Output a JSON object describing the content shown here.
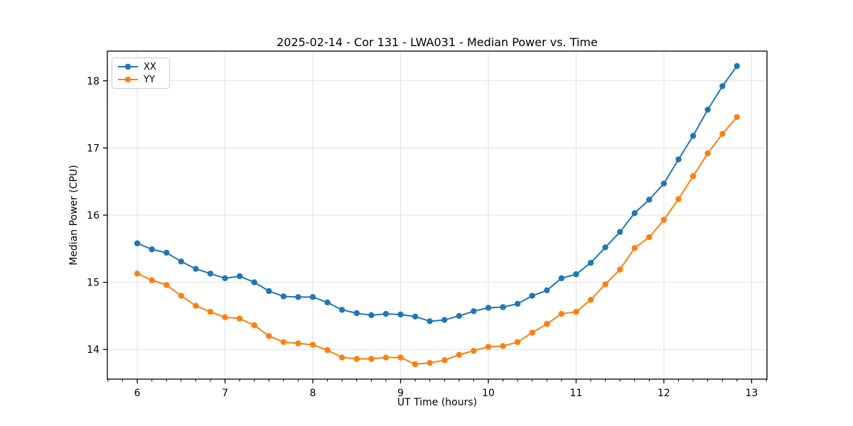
{
  "figure": {
    "title": "2025-02-14 - Cor 131 - LWA031 - Median Power vs. Time",
    "xlabel": "UT Time (hours)",
    "ylabel": "Median Power (CPU)"
  },
  "legend": {
    "entries": [
      {
        "label": "XX",
        "color": "#1f77b4"
      },
      {
        "label": "YY",
        "color": "#ff7f0e"
      }
    ]
  },
  "colors": {
    "background": "#ffffff",
    "grid": "#e0e0e0",
    "spine": "#000000",
    "text": "#000000",
    "series_blue": "#1f77b4",
    "series_orange": "#ff7f0e"
  },
  "chart_data": {
    "type": "line",
    "title": "2025-02-14 - Cor 131 - LWA031 - Median Power vs. Time",
    "xlabel": "UT Time (hours)",
    "ylabel": "Median Power (CPU)",
    "xlim": [
      5.659,
      13.175
    ],
    "ylim": [
      13.558,
      18.442
    ],
    "xticks": [
      6,
      7,
      8,
      9,
      10,
      11,
      12,
      13
    ],
    "yticks": [
      14,
      15,
      16,
      17,
      18
    ],
    "x_minor_step": 0.1666667,
    "grid": true,
    "legend_position": "upper left",
    "marker": "o",
    "x": [
      6.0,
      6.167,
      6.333,
      6.5,
      6.667,
      6.833,
      7.0,
      7.167,
      7.333,
      7.5,
      7.667,
      7.833,
      8.0,
      8.167,
      8.333,
      8.5,
      8.667,
      8.833,
      9.0,
      9.167,
      9.333,
      9.5,
      9.667,
      9.833,
      10.0,
      10.167,
      10.333,
      10.5,
      10.667,
      10.833,
      11.0,
      11.167,
      11.333,
      11.5,
      11.667,
      11.833,
      12.0,
      12.167,
      12.333,
      12.5,
      12.667,
      12.833
    ],
    "series": [
      {
        "name": "XX",
        "color": "#1f77b4",
        "values": [
          15.58,
          15.49,
          15.44,
          15.31,
          15.2,
          15.13,
          15.06,
          15.09,
          15.0,
          14.87,
          14.79,
          14.78,
          14.78,
          14.7,
          14.59,
          14.54,
          14.51,
          14.53,
          14.52,
          14.49,
          14.42,
          14.44,
          14.5,
          14.57,
          14.62,
          14.63,
          14.68,
          14.8,
          14.88,
          15.06,
          15.12,
          15.29,
          15.52,
          15.75,
          16.03,
          16.23,
          16.47,
          16.83,
          17.18,
          17.57,
          17.92,
          18.22
        ]
      },
      {
        "name": "YY",
        "color": "#ff7f0e",
        "values": [
          15.13,
          15.03,
          14.96,
          14.8,
          14.65,
          14.56,
          14.48,
          14.46,
          14.36,
          14.2,
          14.11,
          14.09,
          14.07,
          13.99,
          13.88,
          13.86,
          13.86,
          13.88,
          13.88,
          13.78,
          13.8,
          13.84,
          13.92,
          13.98,
          14.04,
          14.05,
          14.11,
          14.25,
          14.38,
          14.53,
          14.56,
          14.74,
          14.97,
          15.19,
          15.51,
          15.67,
          15.93,
          16.24,
          16.58,
          16.92,
          17.21,
          17.46
        ]
      }
    ]
  }
}
